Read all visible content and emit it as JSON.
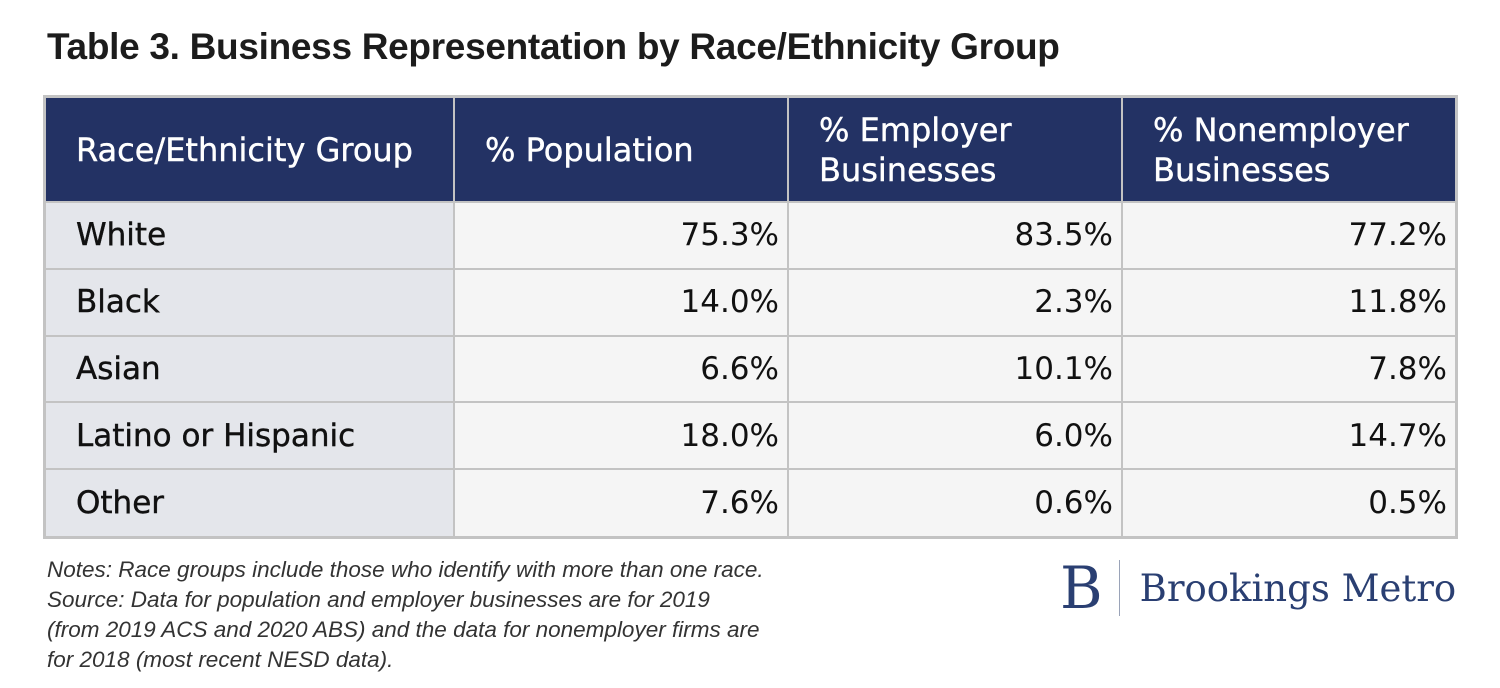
{
  "title": "Table 3. Business Representation by Race/Ethnicity Group",
  "chart_data": {
    "type": "table",
    "title": "Table 3. Business Representation by Race/Ethnicity Group",
    "columns": [
      "Race/Ethnicity Group",
      "% Population",
      "% Employer Businesses",
      "% Nonemployer Businesses"
    ],
    "rows": [
      {
        "group": "White",
        "population": "75.3%",
        "employer": "83.5%",
        "nonemployer": "77.2%"
      },
      {
        "group": "Black",
        "population": "14.0%",
        "employer": "2.3%",
        "nonemployer": "11.8%"
      },
      {
        "group": "Asian",
        "population": "6.6%",
        "employer": "10.1%",
        "nonemployer": "7.8%"
      },
      {
        "group": "Latino or Hispanic",
        "population": "18.0%",
        "employer": "6.0%",
        "nonemployer": "14.7%"
      },
      {
        "group": "Other",
        "population": "7.6%",
        "employer": "0.6%",
        "nonemployer": "0.5%"
      }
    ]
  },
  "notes": [
    "Notes: Race groups include those who identify with more than one race.",
    "Source: Data for population and employer businesses are for 2019",
    "(from 2019 ACS and 2020 ABS) and the data for nonemployer firms are",
    "for 2018 (most recent NESD data)."
  ],
  "logo": {
    "mark": "B",
    "text": "Brookings Metro"
  },
  "colors": {
    "header_bg": "#233264",
    "label_cell_bg": "#e4e6eb",
    "value_cell_bg": "#f5f5f5",
    "grid": "#c3c3c3",
    "brand": "#2a3f72"
  }
}
